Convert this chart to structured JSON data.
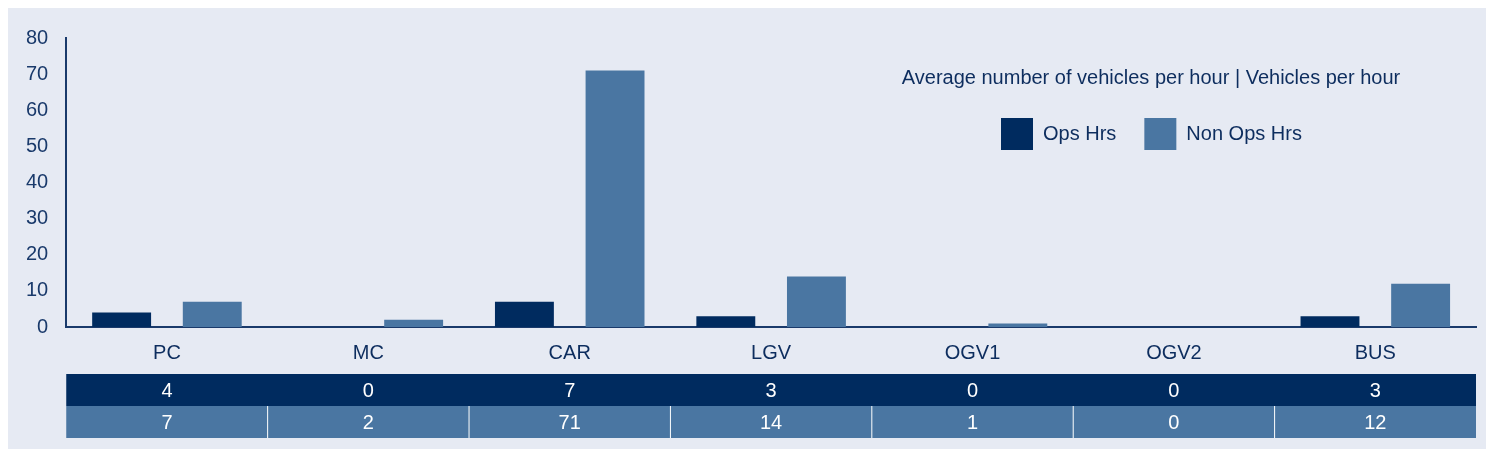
{
  "chart_data": {
    "type": "bar",
    "title": "Average number of vehicles per hour | Vehicles per hour",
    "categories": [
      "PC",
      "MC",
      "CAR",
      "LGV",
      "OGV1",
      "OGV2",
      "BUS"
    ],
    "series": [
      {
        "name": "Ops Hrs",
        "color": "#002b5f",
        "values": [
          4,
          0,
          7,
          3,
          0,
          0,
          3
        ]
      },
      {
        "name": "Non Ops Hrs",
        "color": "#4a76a2",
        "values": [
          7,
          2,
          71,
          14,
          1,
          0,
          12
        ]
      }
    ],
    "ylim": [
      0,
      80
    ],
    "yticks": [
      0,
      10,
      20,
      30,
      40,
      50,
      60,
      70,
      80
    ],
    "grid": false,
    "legend": "top right",
    "data_labels": true
  }
}
